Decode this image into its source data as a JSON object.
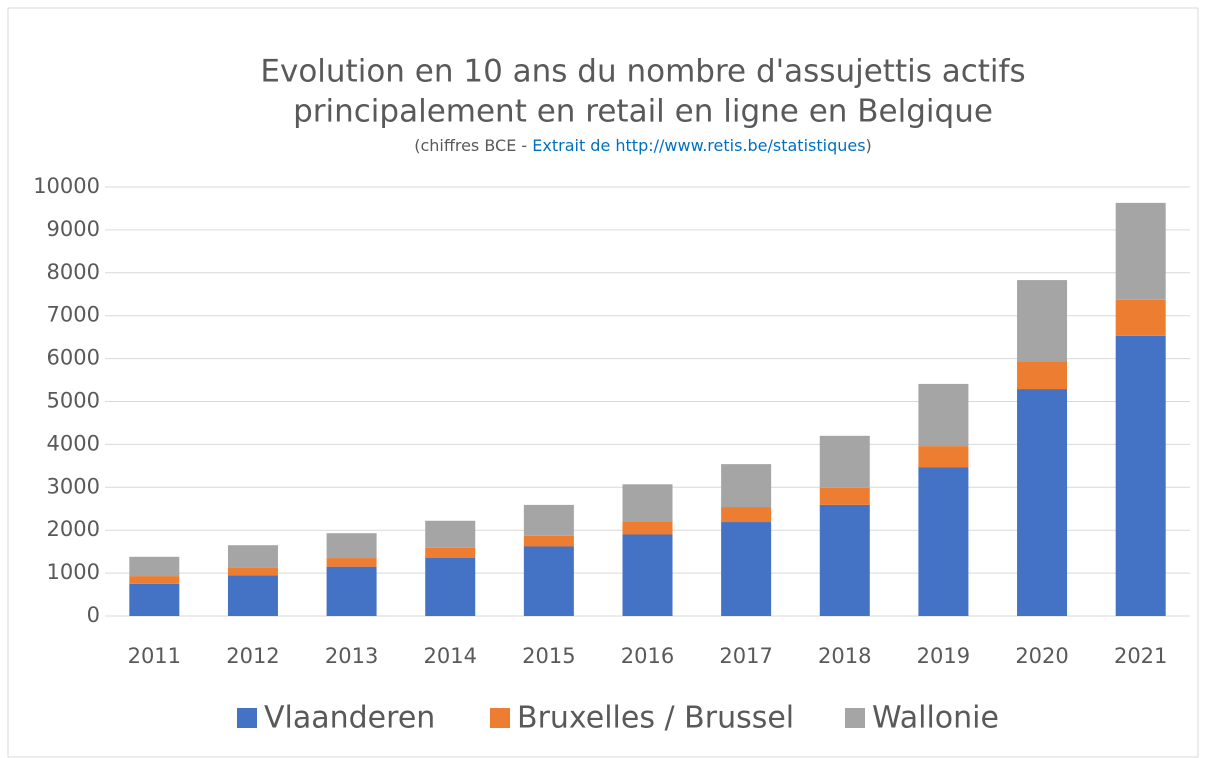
{
  "chart_data": {
    "type": "stacked_bar",
    "title": [
      "Evolution en 10 ans du nombre d'assujettis actifs",
      "principalement en retail en ligne en Belgique"
    ],
    "subtitle": [
      "(chiffres BCE - ",
      "Extrait de http://www.retis.be/statistiques",
      ")"
    ],
    "categories": [
      "2011",
      "2012",
      "2013",
      "2014",
      "2015",
      "2016",
      "2017",
      "2018",
      "2019",
      "2020",
      "2021"
    ],
    "series": [
      {
        "name": "Vlaanderen",
        "color": "#4472c4",
        "values": [
          750,
          950,
          1150,
          1360,
          1620,
          1900,
          2190,
          2590,
          3470,
          5290,
          6530
        ]
      },
      {
        "name": "Bruxelles / Brussel",
        "color": "#ed7d31",
        "values": [
          180,
          170,
          200,
          230,
          250,
          310,
          350,
          400,
          490,
          650,
          840
        ]
      },
      {
        "name": "Wallonie",
        "color": "#a5a5a5",
        "values": [
          450,
          530,
          580,
          630,
          720,
          860,
          1000,
          1210,
          1450,
          1890,
          2260
        ]
      }
    ],
    "ylim": [
      0,
      10000
    ],
    "yticks": [
      0,
      1000,
      2000,
      3000,
      4000,
      5000,
      6000,
      7000,
      8000,
      9000,
      10000
    ],
    "grid": true,
    "legend": "bottom"
  }
}
